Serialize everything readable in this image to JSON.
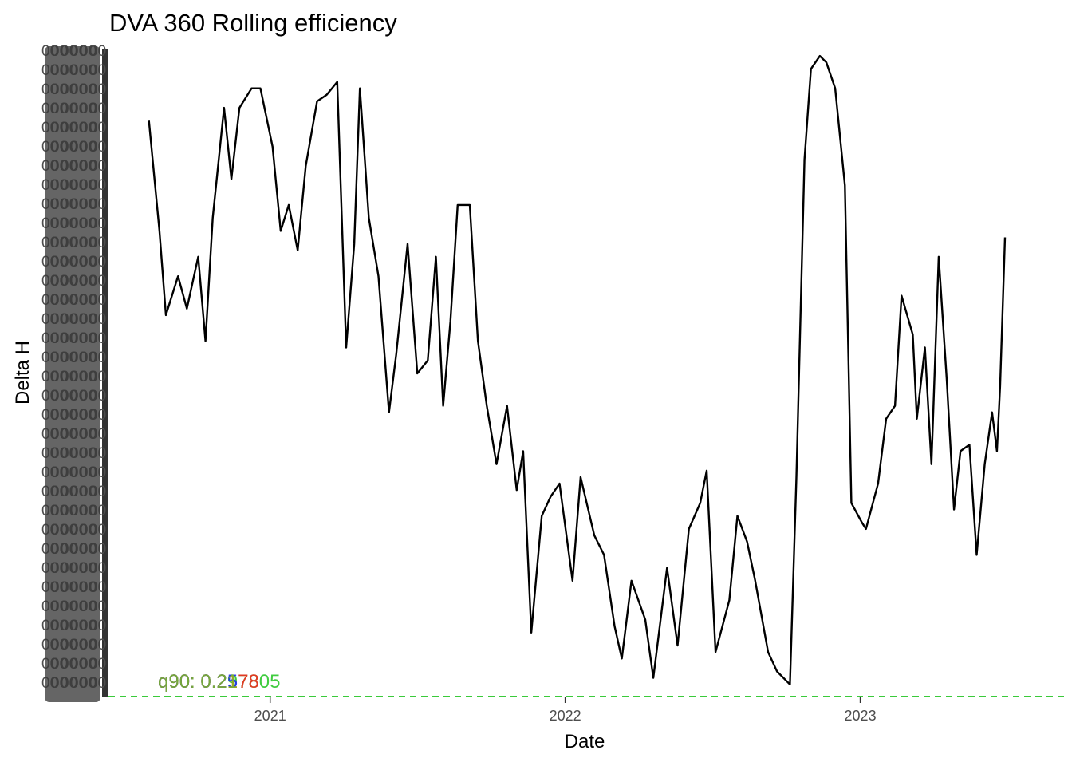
{
  "chart_data": {
    "type": "line",
    "title": "DVA 360 Rolling efficiency",
    "xlabel": "Date",
    "ylabel": "Delta H",
    "x_tick_labels": [
      "2021",
      "2022",
      "2023"
    ],
    "x_ticks": [
      "2021-01-01",
      "2022-01-01",
      "2023-01-01"
    ],
    "xlim": [
      "2020-06-15",
      "2023-09-12"
    ],
    "ylim": [
      0,
      1
    ],
    "grid": false,
    "legend": "none",
    "y_axis_note": "overplotted illegible tick labels",
    "reference_lines": [
      {
        "name": "q90",
        "value": 0.0,
        "color": "#1ec31e",
        "style": "dashed"
      }
    ],
    "annotations": [
      {
        "text": "q90: 0.297805",
        "color": "#1ec31e"
      },
      {
        "text": "q90: 0.2178",
        "color": "#ff1e1e"
      },
      {
        "text": "q90: 0.25",
        "color": "#1e1eff"
      },
      {
        "text": "q90: 0.21",
        "color": "#7fbf1e"
      }
    ],
    "series": [
      {
        "color": "#000000",
        "x": [
          "2020-08-04",
          "2020-08-17",
          "2020-08-25",
          "2020-09-09",
          "2020-09-20",
          "2020-10-04",
          "2020-10-13",
          "2020-10-22",
          "2020-11-05",
          "2020-11-14",
          "2020-11-24",
          "2020-12-09",
          "2020-12-20",
          "2021-01-04",
          "2021-01-14",
          "2021-01-24",
          "2021-02-04",
          "2021-02-14",
          "2021-02-28",
          "2021-03-12",
          "2021-03-25",
          "2021-04-05",
          "2021-04-15",
          "2021-04-22",
          "2021-05-03",
          "2021-05-15",
          "2021-05-28",
          "2021-06-06",
          "2021-06-20",
          "2021-07-02",
          "2021-07-15",
          "2021-07-25",
          "2021-08-03",
          "2021-08-12",
          "2021-08-21",
          "2021-09-05",
          "2021-09-15",
          "2021-09-26",
          "2021-10-08",
          "2021-10-21",
          "2021-11-02",
          "2021-11-10",
          "2021-11-20",
          "2021-12-03",
          "2021-12-14",
          "2021-12-25",
          "2022-01-10",
          "2022-01-20",
          "2022-02-06",
          "2022-02-18",
          "2022-03-03",
          "2022-03-12",
          "2022-03-24",
          "2022-04-10",
          "2022-04-20",
          "2022-05-07",
          "2022-05-20",
          "2022-06-03",
          "2022-06-17",
          "2022-06-25",
          "2022-07-06",
          "2022-07-23",
          "2022-08-02",
          "2022-08-14",
          "2022-08-24",
          "2022-09-09",
          "2022-09-20",
          "2022-10-06",
          "2022-10-14",
          "2022-10-24",
          "2022-11-01",
          "2022-11-12",
          "2022-11-20",
          "2022-12-01",
          "2022-12-13",
          "2022-12-21",
          "2023-01-03",
          "2023-01-08",
          "2023-01-23",
          "2023-02-02",
          "2023-02-13",
          "2023-02-21",
          "2023-03-07",
          "2023-03-12",
          "2023-03-22",
          "2023-03-30",
          "2023-04-08",
          "2023-04-18",
          "2023-04-27",
          "2023-05-05",
          "2023-05-16",
          "2023-05-25",
          "2023-06-04",
          "2023-06-13",
          "2023-06-19",
          "2023-06-23",
          "2023-06-29"
        ],
        "y": [
          0.89,
          0.72,
          0.59,
          0.65,
          0.6,
          0.68,
          0.55,
          0.74,
          0.91,
          0.8,
          0.91,
          0.94,
          0.94,
          0.85,
          0.72,
          0.76,
          0.69,
          0.82,
          0.92,
          0.93,
          0.95,
          0.54,
          0.7,
          0.94,
          0.74,
          0.65,
          0.44,
          0.53,
          0.7,
          0.5,
          0.52,
          0.68,
          0.45,
          0.58,
          0.76,
          0.76,
          0.55,
          0.45,
          0.36,
          0.45,
          0.32,
          0.38,
          0.1,
          0.28,
          0.31,
          0.33,
          0.18,
          0.34,
          0.25,
          0.22,
          0.11,
          0.06,
          0.18,
          0.12,
          0.03,
          0.2,
          0.08,
          0.26,
          0.3,
          0.35,
          0.07,
          0.15,
          0.28,
          0.24,
          0.18,
          0.07,
          0.04,
          0.02,
          0.34,
          0.83,
          0.97,
          0.99,
          0.98,
          0.94,
          0.79,
          0.3,
          0.27,
          0.26,
          0.33,
          0.43,
          0.45,
          0.62,
          0.56,
          0.43,
          0.54,
          0.36,
          0.68,
          0.49,
          0.29,
          0.38,
          0.39,
          0.22,
          0.36,
          0.44,
          0.38,
          0.48,
          0.71
        ]
      }
    ]
  }
}
